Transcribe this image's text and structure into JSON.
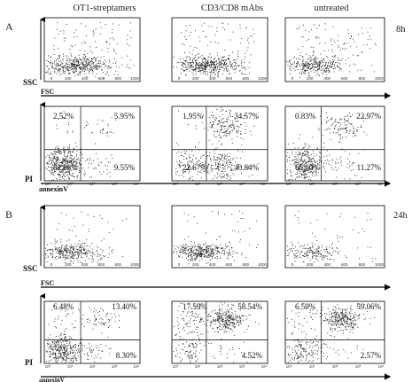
{
  "figure": {
    "panel_letters": [
      "A",
      "B"
    ],
    "column_headers": [
      "OT1-streptamers",
      "CD3/CD8 mAbs",
      "untreated"
    ],
    "timepoints": [
      "8h",
      "24h"
    ],
    "axes": {
      "scatter_x": "FSC",
      "scatter_y": "SSC",
      "apoptosis_x": "annexinV",
      "apoptosis_y": "PI"
    },
    "scatter_ticks": [
      "0",
      "200",
      "400",
      "600",
      "800",
      "1000"
    ],
    "log_ticks": [
      "10⁰",
      "10¹",
      "10²",
      "10³",
      "10⁴"
    ]
  },
  "chart_data": [
    {
      "type": "scatter",
      "panel": "A",
      "timepoint": "8h",
      "plot": "FSC/SSC",
      "xlabel": "FSC",
      "ylabel": "SSC",
      "xlim": [
        0,
        1000
      ],
      "ylim": [
        0,
        1000
      ],
      "columns": [
        "OT1-streptamers",
        "CD3/CD8 mAbs",
        "untreated"
      ]
    },
    {
      "type": "scatter",
      "panel": "A",
      "timepoint": "8h",
      "plot": "annexinV/PI",
      "xlabel": "annexinV",
      "ylabel": "PI",
      "quadrants": [
        {
          "column": "OT1-streptamers",
          "ul": "2.52%",
          "ur": "5.95%",
          "ll": "81.98%",
          "lr": "9.55%"
        },
        {
          "column": "CD3/CD8 mAbs",
          "ul": "1.95%",
          "ur": "34.57%",
          "ll": "22.67%",
          "lr": "40.84%"
        },
        {
          "column": "untreated",
          "ul": "0.83%",
          "ur": "22.97%",
          "ll": "65.00%",
          "lr": "11.27%"
        }
      ]
    },
    {
      "type": "scatter",
      "panel": "B",
      "timepoint": "24h",
      "plot": "FSC/SSC",
      "xlabel": "FSC",
      "ylabel": "SSC",
      "xlim": [
        0,
        1000
      ],
      "ylim": [
        0,
        1000
      ],
      "columns": [
        "OT1-streptamers",
        "CD3/CD8 mAbs",
        "untreated"
      ]
    },
    {
      "type": "scatter",
      "panel": "B",
      "timepoint": "24h",
      "plot": "annexinV/PI",
      "xlabel": "annexinV",
      "ylabel": "PI",
      "quadrants": [
        {
          "column": "OT1-streptamers",
          "ul": "6.48%",
          "ur": "13.40%",
          "ll": "",
          "lr": "8.30%"
        },
        {
          "column": "CD3/CD8 mAbs",
          "ul": "17.59%",
          "ur": "58.54%",
          "ll": "",
          "lr": "4.52%"
        },
        {
          "column": "untreated",
          "ul": "6.59%",
          "ur": "59.06%",
          "ll": "",
          "lr": "2.57%"
        }
      ]
    }
  ]
}
